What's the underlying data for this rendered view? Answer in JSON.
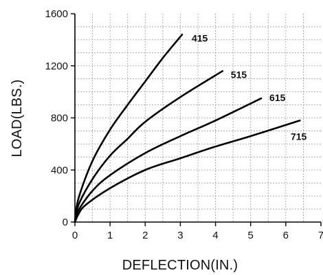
{
  "chart_data": {
    "type": "line",
    "title": "",
    "xlabel": "DEFLECTION(IN.)",
    "ylabel": "LOAD(LBS.)",
    "xlim": [
      0,
      7
    ],
    "ylim": [
      0,
      1600
    ],
    "x_ticks": [
      "0",
      "1",
      "2",
      "3",
      "4",
      "5",
      "6",
      "7"
    ],
    "y_ticks": [
      "0",
      "400",
      "800",
      "1200",
      "1600"
    ],
    "grid": true,
    "line_color": "#000000",
    "grid_color": "#9a9a9a",
    "series": [
      {
        "name": "415",
        "points": [
          [
            0,
            0
          ],
          [
            0.1,
            180
          ],
          [
            0.5,
            470
          ],
          [
            1.0,
            710
          ],
          [
            1.5,
            900
          ],
          [
            2.0,
            1080
          ],
          [
            2.5,
            1260
          ],
          [
            3.05,
            1440
          ]
        ]
      },
      {
        "name": "515",
        "points": [
          [
            0,
            0
          ],
          [
            0.1,
            130
          ],
          [
            0.5,
            330
          ],
          [
            1.0,
            510
          ],
          [
            1.5,
            640
          ],
          [
            2.0,
            770
          ],
          [
            3.0,
            960
          ],
          [
            4.2,
            1160
          ]
        ]
      },
      {
        "name": "615",
        "points": [
          [
            0,
            0
          ],
          [
            0.1,
            90
          ],
          [
            0.5,
            240
          ],
          [
            1.0,
            360
          ],
          [
            2.0,
            530
          ],
          [
            3.0,
            660
          ],
          [
            4.0,
            780
          ],
          [
            5.3,
            950
          ]
        ]
      },
      {
        "name": "715",
        "points": [
          [
            0,
            0
          ],
          [
            0.1,
            60
          ],
          [
            0.3,
            130
          ],
          [
            1.0,
            260
          ],
          [
            2.0,
            400
          ],
          [
            3.0,
            490
          ],
          [
            4.0,
            580
          ],
          [
            5.0,
            660
          ],
          [
            6.4,
            780
          ]
        ]
      }
    ]
  }
}
